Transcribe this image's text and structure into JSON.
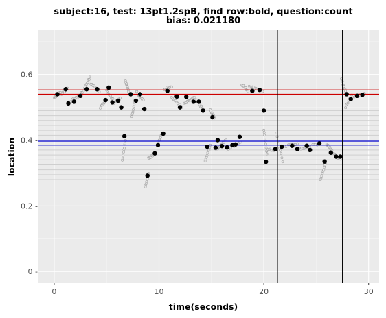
{
  "chart_data": {
    "type": "scatter",
    "title_line1": "subject:16, test: 13pt1.2spB, find row:bold, question:count",
    "title_line2": "bias: 0.021180",
    "xlabel": "time(seconds)",
    "ylabel": "location",
    "xlim": [
      -1.5,
      31.0
    ],
    "ylim": [
      0.735,
      -0.035
    ],
    "y_reversed": true,
    "xticks": [
      0,
      10,
      20,
      30
    ],
    "xtick_labels": [
      "0",
      "10",
      "20",
      "30"
    ],
    "yticks": [
      0,
      0.2,
      0.4,
      0.6
    ],
    "ytick_labels": [
      "0 -",
      "0.2 -",
      "0.4 -",
      "0.6 -"
    ],
    "grid": true,
    "panel_background": "#ebebeb",
    "colors": {
      "row_lines": "#cfcfcf",
      "target_row_lines": "#0000cc",
      "answer_row_lines": "#cc0000",
      "vertical_markers": "#000000",
      "raw_points": "#a0a0a0",
      "fixations": "#000000"
    },
    "row_lines": [
      0.28,
      0.295,
      0.31,
      0.325,
      0.34,
      0.355,
      0.37,
      0.385,
      0.4,
      0.415,
      0.43,
      0.445,
      0.46,
      0.475,
      0.49
    ],
    "target_row_lines": [
      0.385,
      0.397
    ],
    "answer_row_lines": [
      0.54,
      0.553
    ],
    "vertical_markers": [
      21.3,
      27.5
    ],
    "fixations": [
      {
        "x": 0.3,
        "y": 0.54
      },
      {
        "x": 1.1,
        "y": 0.555
      },
      {
        "x": 1.35,
        "y": 0.512
      },
      {
        "x": 1.9,
        "y": 0.517
      },
      {
        "x": 2.5,
        "y": 0.535
      },
      {
        "x": 3.1,
        "y": 0.555
      },
      {
        "x": 4.1,
        "y": 0.555
      },
      {
        "x": 4.9,
        "y": 0.522
      },
      {
        "x": 5.2,
        "y": 0.56
      },
      {
        "x": 5.55,
        "y": 0.515
      },
      {
        "x": 6.1,
        "y": 0.52
      },
      {
        "x": 6.4,
        "y": 0.5
      },
      {
        "x": 6.7,
        "y": 0.412
      },
      {
        "x": 7.3,
        "y": 0.54
      },
      {
        "x": 7.8,
        "y": 0.52
      },
      {
        "x": 8.2,
        "y": 0.54
      },
      {
        "x": 8.6,
        "y": 0.495
      },
      {
        "x": 8.9,
        "y": 0.292
      },
      {
        "x": 9.6,
        "y": 0.36
      },
      {
        "x": 9.9,
        "y": 0.385
      },
      {
        "x": 10.4,
        "y": 0.42
      },
      {
        "x": 10.8,
        "y": 0.55
      },
      {
        "x": 11.7,
        "y": 0.533
      },
      {
        "x": 12.0,
        "y": 0.5
      },
      {
        "x": 12.6,
        "y": 0.532
      },
      {
        "x": 13.3,
        "y": 0.517
      },
      {
        "x": 13.8,
        "y": 0.517
      },
      {
        "x": 14.2,
        "y": 0.49
      },
      {
        "x": 14.6,
        "y": 0.38
      },
      {
        "x": 15.1,
        "y": 0.47
      },
      {
        "x": 15.4,
        "y": 0.377
      },
      {
        "x": 15.6,
        "y": 0.4
      },
      {
        "x": 16.0,
        "y": 0.382
      },
      {
        "x": 16.5,
        "y": 0.378
      },
      {
        "x": 17.0,
        "y": 0.385
      },
      {
        "x": 17.3,
        "y": 0.387
      },
      {
        "x": 17.7,
        "y": 0.41
      },
      {
        "x": 18.9,
        "y": 0.55
      },
      {
        "x": 19.6,
        "y": 0.553
      },
      {
        "x": 20.0,
        "y": 0.49
      },
      {
        "x": 20.2,
        "y": 0.334
      },
      {
        "x": 21.1,
        "y": 0.373
      },
      {
        "x": 21.7,
        "y": 0.38
      },
      {
        "x": 22.7,
        "y": 0.383
      },
      {
        "x": 23.2,
        "y": 0.373
      },
      {
        "x": 24.1,
        "y": 0.383
      },
      {
        "x": 24.4,
        "y": 0.37
      },
      {
        "x": 25.3,
        "y": 0.39
      },
      {
        "x": 25.8,
        "y": 0.335
      },
      {
        "x": 26.4,
        "y": 0.362
      },
      {
        "x": 26.9,
        "y": 0.35
      },
      {
        "x": 27.3,
        "y": 0.35
      },
      {
        "x": 27.9,
        "y": 0.54
      },
      {
        "x": 28.3,
        "y": 0.525
      },
      {
        "x": 28.9,
        "y": 0.535
      },
      {
        "x": 29.4,
        "y": 0.538
      }
    ],
    "raw_segments": [
      {
        "x0": 0.0,
        "x1": 0.6,
        "y0": 0.53,
        "y1": 0.545
      },
      {
        "x0": 0.7,
        "x1": 1.3,
        "y0": 0.54,
        "y1": 0.56
      },
      {
        "x0": 1.3,
        "x1": 2.2,
        "y0": 0.515,
        "y1": 0.53
      },
      {
        "x0": 2.2,
        "x1": 2.8,
        "y0": 0.53,
        "y1": 0.55
      },
      {
        "x0": 2.9,
        "x1": 3.4,
        "y0": 0.56,
        "y1": 0.59
      },
      {
        "x0": 3.4,
        "x1": 4.3,
        "y0": 0.575,
        "y1": 0.55
      },
      {
        "x0": 4.4,
        "x1": 4.8,
        "y0": 0.5,
        "y1": 0.515
      },
      {
        "x0": 5.0,
        "x1": 5.6,
        "y0": 0.55,
        "y1": 0.525
      },
      {
        "x0": 5.7,
        "x1": 6.3,
        "y0": 0.51,
        "y1": 0.53
      },
      {
        "x0": 6.5,
        "x1": 6.8,
        "y0": 0.34,
        "y1": 0.4
      },
      {
        "x0": 6.8,
        "x1": 7.1,
        "y0": 0.58,
        "y1": 0.55
      },
      {
        "x0": 7.4,
        "x1": 7.7,
        "y0": 0.47,
        "y1": 0.52
      },
      {
        "x0": 7.8,
        "x1": 8.5,
        "y0": 0.55,
        "y1": 0.52
      },
      {
        "x0": 8.7,
        "x1": 9.0,
        "y0": 0.26,
        "y1": 0.3
      },
      {
        "x0": 9.0,
        "x1": 9.6,
        "y0": 0.345,
        "y1": 0.36
      },
      {
        "x0": 9.9,
        "x1": 10.3,
        "y0": 0.39,
        "y1": 0.42
      },
      {
        "x0": 10.5,
        "x1": 11.2,
        "y0": 0.555,
        "y1": 0.565
      },
      {
        "x0": 11.2,
        "x1": 12.2,
        "y0": 0.53,
        "y1": 0.5
      },
      {
        "x0": 12.4,
        "x1": 13.4,
        "y0": 0.51,
        "y1": 0.53
      },
      {
        "x0": 13.6,
        "x1": 14.3,
        "y0": 0.52,
        "y1": 0.49
      },
      {
        "x0": 14.4,
        "x1": 14.9,
        "y0": 0.335,
        "y1": 0.385
      },
      {
        "x0": 14.9,
        "x1": 15.3,
        "y0": 0.49,
        "y1": 0.47
      },
      {
        "x0": 15.4,
        "x1": 16.4,
        "y0": 0.37,
        "y1": 0.4
      },
      {
        "x0": 16.4,
        "x1": 17.8,
        "y0": 0.37,
        "y1": 0.395
      },
      {
        "x0": 17.9,
        "x1": 18.5,
        "y0": 0.57,
        "y1": 0.55
      },
      {
        "x0": 18.6,
        "x1": 19.9,
        "y0": 0.565,
        "y1": 0.55
      },
      {
        "x0": 20.0,
        "x1": 20.3,
        "y0": 0.43,
        "y1": 0.36
      },
      {
        "x0": 20.3,
        "x1": 21.2,
        "y0": 0.37,
        "y1": 0.37
      },
      {
        "x0": 21.2,
        "x1": 21.8,
        "y0": 0.42,
        "y1": 0.335
      },
      {
        "x0": 21.8,
        "x1": 23.2,
        "y0": 0.38,
        "y1": 0.39
      },
      {
        "x0": 23.2,
        "x1": 25.3,
        "y0": 0.37,
        "y1": 0.39
      },
      {
        "x0": 25.4,
        "x1": 25.9,
        "y0": 0.28,
        "y1": 0.33
      },
      {
        "x0": 26.0,
        "x1": 26.5,
        "y0": 0.39,
        "y1": 0.37
      },
      {
        "x0": 26.6,
        "x1": 27.3,
        "y0": 0.36,
        "y1": 0.34
      },
      {
        "x0": 27.4,
        "x1": 27.8,
        "y0": 0.585,
        "y1": 0.55
      },
      {
        "x0": 27.8,
        "x1": 28.4,
        "y0": 0.5,
        "y1": 0.54
      },
      {
        "x0": 28.4,
        "x1": 29.6,
        "y0": 0.53,
        "y1": 0.545
      }
    ]
  }
}
